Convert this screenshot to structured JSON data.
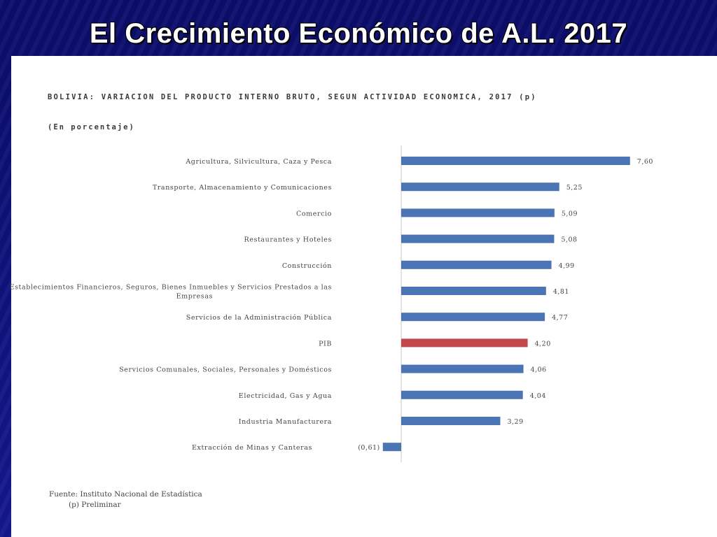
{
  "slide": {
    "title": "El Crecimiento Económico de A.L. 2017"
  },
  "colors": {
    "background": "#10127a",
    "bar": "#4a74b3",
    "highlight_bar": "#c0474a",
    "axis": "#c8c8c8"
  },
  "chart_data": {
    "type": "bar",
    "orientation": "horizontal",
    "title": "BOLIVIA: VARIACION DEL PRODUCTO INTERNO BRUTO, SEGUN ACTIVIDAD ECONOMICA, 2017 (p)",
    "unit_label": "(En porcentaje)",
    "categories": [
      "Agricultura, Silvicultura, Caza y Pesca",
      "Transporte, Almacenamiento y Comunicaciones",
      "Comercio",
      "Restaurantes y Hoteles",
      "Construcción",
      "Establecimientos Financieros, Seguros, Bienes Inmuebles y Servicios Prestados a las Empresas",
      "Servicios de la Administración Pública",
      "PIB",
      "Servicios Comunales, Sociales, Personales y Domésticos",
      "Electricidad, Gas y Agua",
      "Industria Manufacturera",
      "Extracción de Minas y Canteras"
    ],
    "values": [
      7.6,
      5.25,
      5.09,
      5.08,
      4.99,
      4.81,
      4.77,
      4.2,
      4.06,
      4.04,
      3.29,
      -0.61
    ],
    "value_labels": [
      "7,60",
      "5,25",
      "5,09",
      "5,08",
      "4,99",
      "4,81",
      "4,77",
      "4,20",
      "4,06",
      "4,04",
      "3,29",
      "(0,61)"
    ],
    "highlight_category": "PIB",
    "grid": false,
    "legend": "none"
  },
  "source": {
    "line1": "Fuente: Instituto Nacional de Estadística",
    "line2": "(p) Preliminar"
  }
}
